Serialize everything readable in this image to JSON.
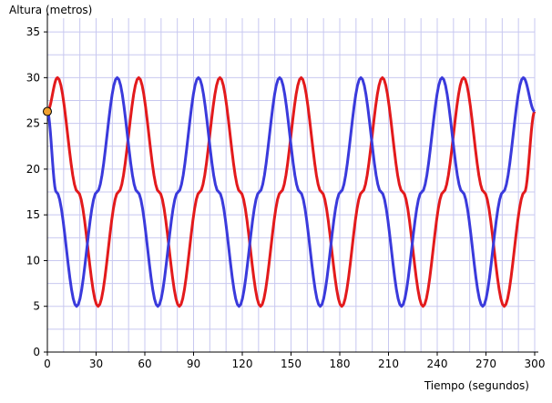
{
  "chart_data": {
    "type": "line",
    "xlabel": "Tiempo (segundos)",
    "ylabel": "Altura (metros)",
    "xlim": [
      0,
      300
    ],
    "ylim": [
      0,
      36.5
    ],
    "x_ticks": [
      0,
      30,
      60,
      90,
      120,
      150,
      180,
      210,
      240,
      270,
      300
    ],
    "y_ticks": [
      0,
      5,
      10,
      15,
      20,
      25,
      30,
      35
    ],
    "x_minor_step": 10,
    "y_minor_step": 2.5,
    "grid": true,
    "grid_color": "#c8c8f0",
    "series": [
      {
        "color": "#e31a1c",
        "x": [
          0,
          6.25,
          18.75,
          31.25,
          43.75,
          56.25,
          68.75,
          81.25,
          93.75,
          106.25,
          118.75,
          131.25,
          143.75,
          156.25,
          168.75,
          181.25,
          193.75,
          206.25,
          218.75,
          231.25,
          243.75,
          256.25,
          268.75,
          281.25,
          293.75,
          300
        ],
        "y": [
          26.3,
          30,
          17.5,
          5,
          17.5,
          30,
          17.5,
          5,
          17.5,
          30,
          17.5,
          5,
          17.5,
          30,
          17.5,
          5,
          17.5,
          30,
          17.5,
          5,
          17.5,
          30,
          17.5,
          5,
          17.5,
          26.3
        ]
      },
      {
        "color": "#3a3adc",
        "x": [
          0,
          5.5,
          18,
          30.5,
          43,
          55.5,
          68,
          80.5,
          93,
          105.5,
          118,
          130.5,
          143,
          155.5,
          168,
          180.5,
          193,
          205.5,
          218,
          230.5,
          243,
          255.5,
          268,
          280.5,
          293,
          300
        ],
        "y": [
          26.3,
          17.5,
          5,
          17.5,
          30,
          17.5,
          5,
          17.5,
          30,
          17.5,
          5,
          17.5,
          30,
          17.5,
          5,
          17.5,
          30,
          17.5,
          5,
          17.5,
          30,
          17.5,
          5,
          17.5,
          30,
          26.3
        ]
      }
    ],
    "marker": {
      "x": 0,
      "y": 26.3,
      "color": "#f0a030"
    }
  }
}
